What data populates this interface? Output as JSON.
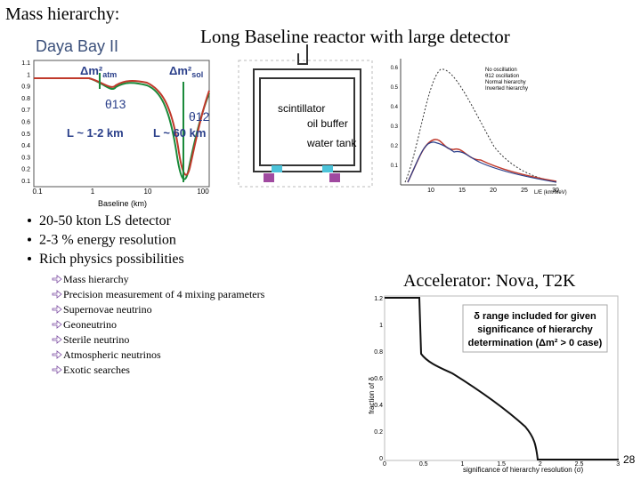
{
  "title": "Mass hierarchy:",
  "heading": "Long Baseline reactor with large detector",
  "left_figure": {
    "title": "Daya Bay II",
    "dm_atm": "Δm²",
    "dm_atm_sub": "atm",
    "dm_sol": "Δm²",
    "dm_sol_sub": "sol",
    "theta13": "θ13",
    "theta12": "θ12",
    "near": "L ~ 1-2 km",
    "far": "L ~ 60 km",
    "x_label": "Baseline (km)",
    "xticks": [
      "0.1",
      "1",
      "10",
      "100"
    ],
    "yticks": [
      "1.1",
      "1",
      "0.9",
      "0.8",
      "0.7",
      "0.6",
      "0.5",
      "0.4",
      "0.3",
      "0.2",
      "0.1"
    ]
  },
  "detector": {
    "scintillator": "scintillator",
    "oil": "oil buffer",
    "water": "water tank"
  },
  "right_figure": {
    "legend": [
      "No oscillation",
      "θ12 oscillation",
      "Normal hierarchy",
      "Inverted hierarchy"
    ],
    "x_label": "L/E (km/MeV)",
    "xticks": [
      "10",
      "15",
      "20",
      "25",
      "30"
    ],
    "yticks": [
      "0.6",
      "0.5",
      "0.4",
      "0.3",
      "0.2",
      "0.1"
    ]
  },
  "bullets": [
    "20-50 kton LS detector",
    "2-3 % energy resolution",
    "Rich physics possibilities"
  ],
  "sub_bullets": [
    "Mass hierarchy",
    "Precision measurement of 4 mixing parameters",
    "Supernovae neutrino",
    "Geoneutrino",
    "Sterile neutrino",
    "Atmospheric neutrinos",
    "Exotic searches"
  ],
  "accelerator": "Accelerator: Nova, T2K",
  "bottom_figure": {
    "box": [
      "δ range included for given",
      "significance of hierarchy",
      "determination (Δm² > 0 case)"
    ],
    "x_label": "significance of hierarchy resolution (σ)",
    "y_label": "fraction of δ",
    "xticks": [
      "0",
      "0.5",
      "1",
      "1.5",
      "2",
      "2.5",
      "3"
    ],
    "yticks": [
      "1.2",
      "1",
      "0.8",
      "0.6",
      "0.4",
      "0.2",
      "0"
    ]
  },
  "page_number": "28"
}
